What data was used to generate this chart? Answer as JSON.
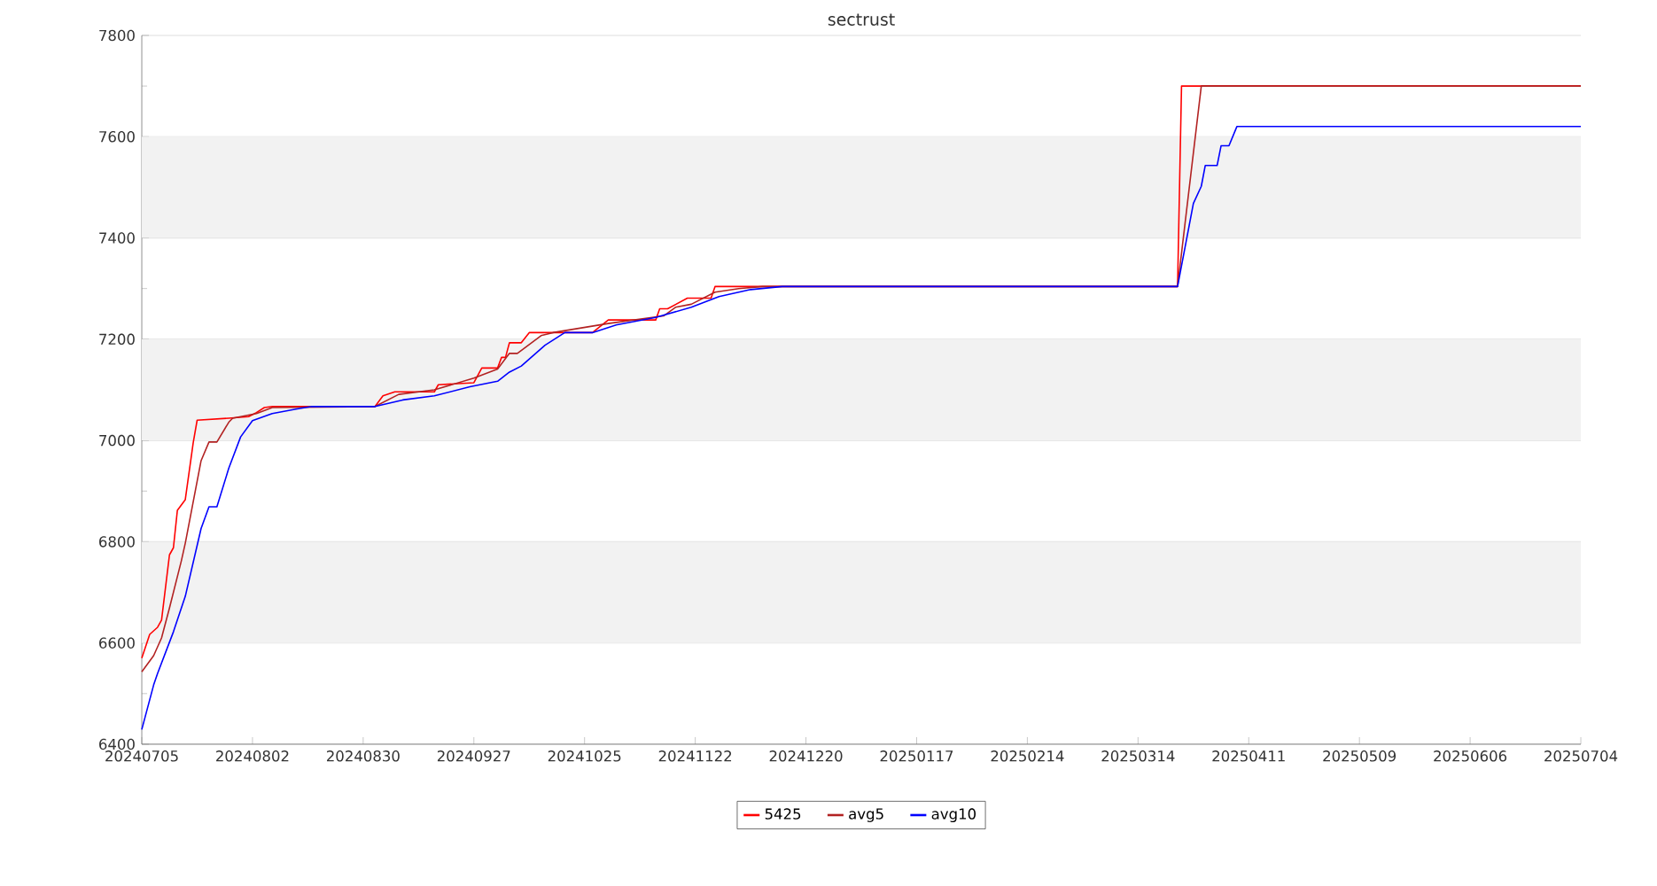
{
  "chart_data": {
    "type": "line",
    "title": "sectrust",
    "legend": "bottom",
    "grid": "y",
    "line_style": "solid",
    "marker": "none",
    "xlim": [
      "2024-07-05",
      "2025-07-04"
    ],
    "ylim": [
      6400,
      7800
    ],
    "yticks": [
      6400,
      6600,
      6800,
      7000,
      7200,
      7400,
      7600,
      7800
    ],
    "xticks": [
      {
        "value": "2024-07-05",
        "label": "20240705"
      },
      {
        "value": "2024-08-02",
        "label": "20240802"
      },
      {
        "value": "2024-08-30",
        "label": "20240830"
      },
      {
        "value": "2024-09-27",
        "label": "20240927"
      },
      {
        "value": "2024-10-25",
        "label": "20241025"
      },
      {
        "value": "2024-11-22",
        "label": "20241122"
      },
      {
        "value": "2024-12-20",
        "label": "20241220"
      },
      {
        "value": "2025-01-17",
        "label": "20250117"
      },
      {
        "value": "2025-02-14",
        "label": "20250214"
      },
      {
        "value": "2025-03-14",
        "label": "20250314"
      },
      {
        "value": "2025-04-11",
        "label": "20250411"
      },
      {
        "value": "2025-05-09",
        "label": "20250509"
      },
      {
        "value": "2025-06-06",
        "label": "20250606"
      },
      {
        "value": "2025-07-04",
        "label": "20250704"
      }
    ],
    "series": [
      {
        "name": "5425",
        "color": "#ff0000",
        "x": [
          "2024-07-05",
          "2024-07-07",
          "2024-07-09",
          "2024-07-10",
          "2024-07-12",
          "2024-07-13",
          "2024-07-14",
          "2024-07-16",
          "2024-07-18",
          "2024-07-19",
          "2024-07-27",
          "2024-08-01",
          "2024-08-03",
          "2024-08-05",
          "2024-08-07",
          "2024-09-02",
          "2024-09-04",
          "2024-09-07",
          "2024-09-17",
          "2024-09-18",
          "2024-09-27",
          "2024-09-29",
          "2024-10-03",
          "2024-10-04",
          "2024-10-05",
          "2024-10-06",
          "2024-10-09",
          "2024-10-11",
          "2024-10-27",
          "2024-10-31",
          "2024-11-12",
          "2024-11-13",
          "2024-11-15",
          "2024-11-20",
          "2024-11-26",
          "2024-11-27",
          "2025-03-24",
          "2025-03-25",
          "2025-07-04"
        ],
        "values": [
          6570,
          6617,
          6631,
          6645,
          6774,
          6788,
          6862,
          6883,
          6995,
          7040,
          7044,
          7047,
          7055,
          7065,
          7067,
          7067,
          7088,
          7096,
          7096,
          7110,
          7114,
          7143,
          7143,
          7164,
          7164,
          7193,
          7193,
          7213,
          7213,
          7238,
          7238,
          7260,
          7260,
          7281,
          7281,
          7304,
          7304,
          7700,
          7700
        ]
      },
      {
        "name": "avg5",
        "color": "#b22222",
        "x": [
          "2024-07-05",
          "2024-07-08",
          "2024-07-10",
          "2024-07-12",
          "2024-07-15",
          "2024-07-16",
          "2024-07-20",
          "2024-07-22",
          "2024-07-24",
          "2024-07-27",
          "2024-07-28",
          "2024-08-03",
          "2024-08-07",
          "2024-09-02",
          "2024-09-08",
          "2024-09-17",
          "2024-09-27",
          "2024-10-03",
          "2024-10-06",
          "2024-10-08",
          "2024-10-14",
          "2024-10-17",
          "2024-10-31",
          "2024-11-14",
          "2024-11-17",
          "2024-11-21",
          "2024-11-27",
          "2024-12-03",
          "2024-12-09",
          "2025-03-24",
          "2025-03-30",
          "2025-07-04"
        ],
        "values": [
          6543,
          6575,
          6610,
          6669,
          6762,
          6797,
          6960,
          6997,
          6997,
          7036,
          7044,
          7053,
          7065,
          7067,
          7091,
          7100,
          7123,
          7141,
          7172,
          7172,
          7207,
          7213,
          7231,
          7246,
          7263,
          7269,
          7293,
          7300,
          7304,
          7304,
          7700,
          7700
        ]
      },
      {
        "name": "avg10",
        "color": "#0000ff",
        "x": [
          "2024-07-05",
          "2024-07-08",
          "2024-07-09",
          "2024-07-13",
          "2024-07-16",
          "2024-07-20",
          "2024-07-22",
          "2024-07-24",
          "2024-07-27",
          "2024-07-30",
          "2024-08-02",
          "2024-08-07",
          "2024-08-13",
          "2024-08-17",
          "2024-09-02",
          "2024-09-09",
          "2024-09-17",
          "2024-09-26",
          "2024-10-03",
          "2024-10-06",
          "2024-10-09",
          "2024-10-15",
          "2024-10-20",
          "2024-10-27",
          "2024-11-02",
          "2024-11-12",
          "2024-11-21",
          "2024-11-28",
          "2024-12-06",
          "2024-12-14",
          "2025-03-24",
          "2025-03-27",
          "2025-03-28",
          "2025-03-30",
          "2025-03-31",
          "2025-04-03",
          "2025-04-04",
          "2025-04-06",
          "2025-04-08",
          "2025-07-04"
        ],
        "values": [
          6429,
          6517,
          6540,
          6622,
          6692,
          6826,
          6869,
          6869,
          6945,
          7007,
          7039,
          7053,
          7062,
          7067,
          7067,
          7080,
          7088,
          7106,
          7117,
          7135,
          7147,
          7188,
          7213,
          7213,
          7228,
          7243,
          7263,
          7284,
          7298,
          7304,
          7304,
          7427,
          7468,
          7502,
          7543,
          7543,
          7582,
          7582,
          7620,
          7620
        ]
      }
    ]
  }
}
